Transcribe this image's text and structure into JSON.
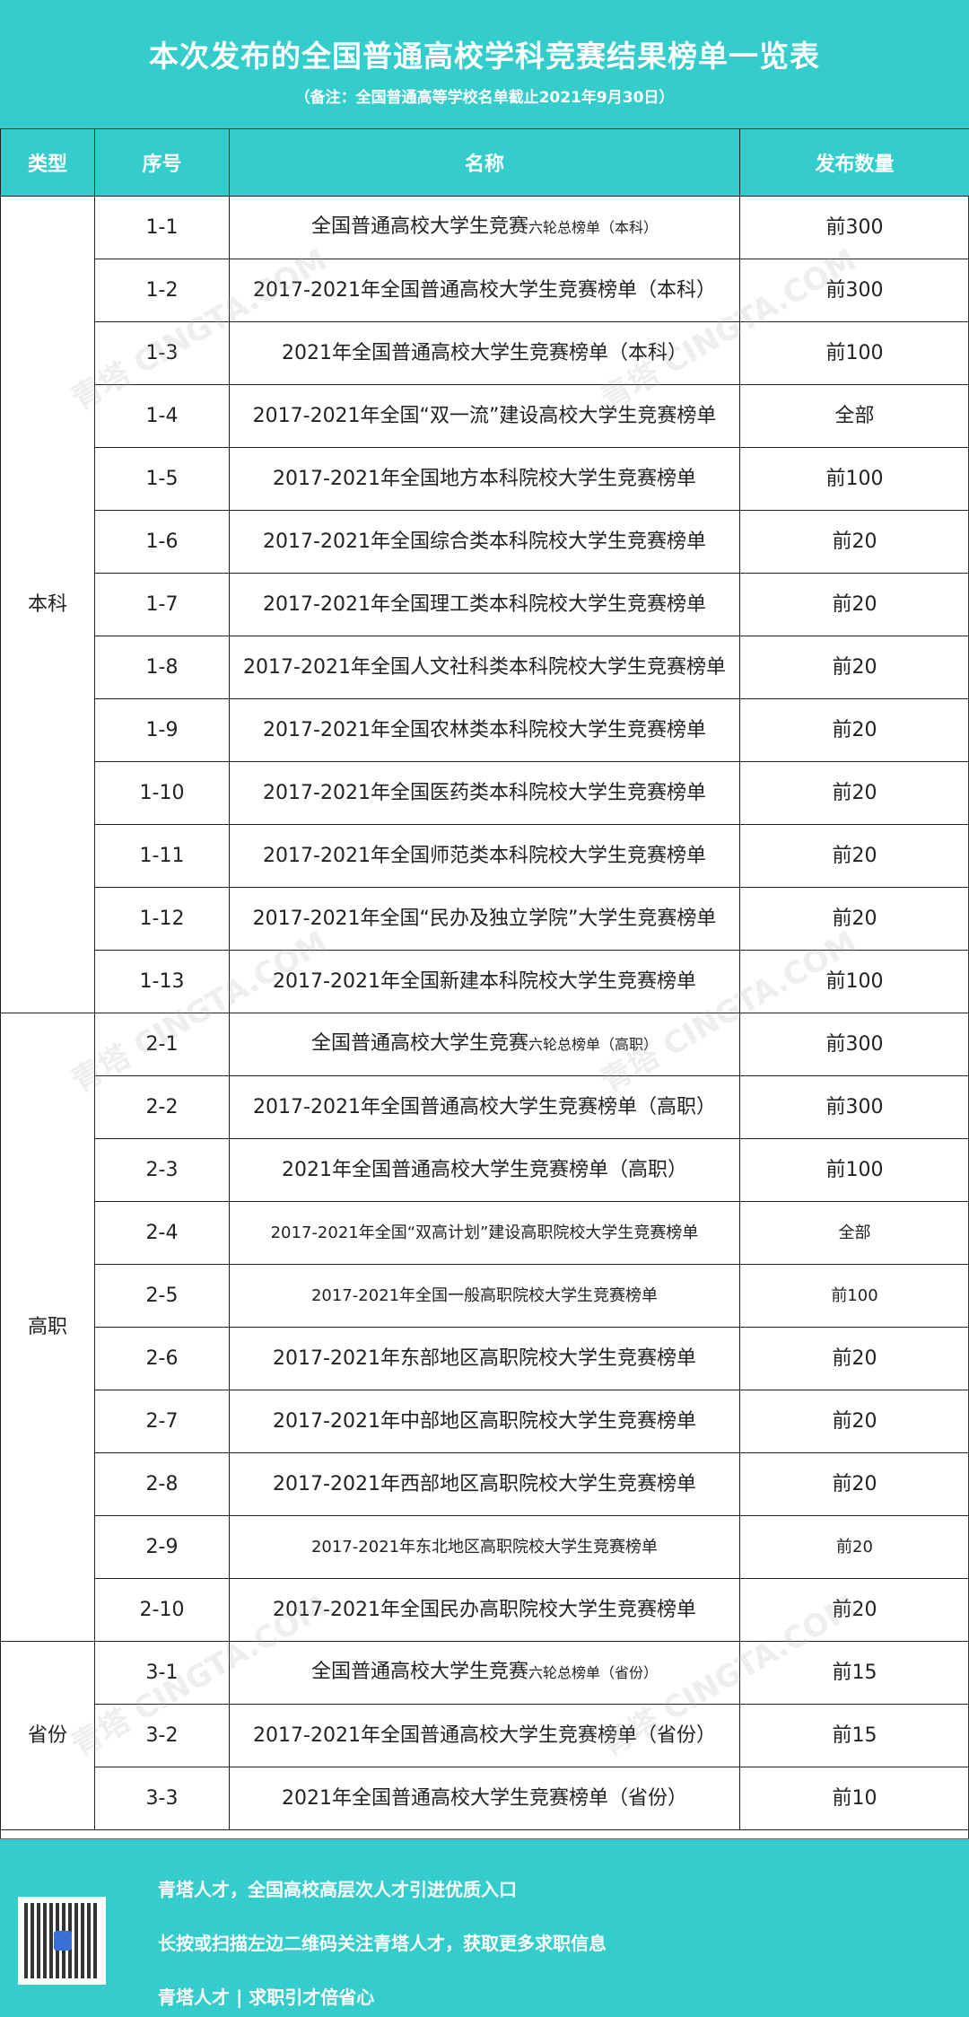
{
  "title": "本次发布的全国普通高校学科竞赛结果榜单一览表",
  "subtitle": "（备注：全国普通高等学校名单截止2021年9月30日）",
  "headers": [
    "类型",
    "序号",
    "名称",
    "发布数量"
  ],
  "colors": {
    "accent": "#35cccc"
  },
  "groups": [
    {
      "type": "本科",
      "rows": [
        {
          "id": "1-1",
          "name": "全国普通高校大学生竞赛",
          "name_small": "六轮总榜单（本科）",
          "count": "前300"
        },
        {
          "id": "1-2",
          "name": "2017-2021年全国普通高校大学生竞赛榜单（本科）",
          "count": "前300"
        },
        {
          "id": "1-3",
          "name": "2021年全国普通高校大学生竞赛榜单（本科）",
          "count": "前100"
        },
        {
          "id": "1-4",
          "name": "2017-2021年全国“双一流”建设高校大学生竞赛榜单",
          "count": "全部"
        },
        {
          "id": "1-5",
          "name": "2017-2021年全国地方本科院校大学生竞赛榜单",
          "count": "前100"
        },
        {
          "id": "1-6",
          "name": "2017-2021年全国综合类本科院校大学生竞赛榜单",
          "count": "前20"
        },
        {
          "id": "1-7",
          "name": "2017-2021年全国理工类本科院校大学生竞赛榜单",
          "count": "前20"
        },
        {
          "id": "1-8",
          "name": "2017-2021年全国人文社科类本科院校大学生竞赛榜单",
          "count": "前20"
        },
        {
          "id": "1-9",
          "name": "2017-2021年全国农林类本科院校大学生竞赛榜单",
          "count": "前20"
        },
        {
          "id": "1-10",
          "name": "2017-2021年全国医药类本科院校大学生竞赛榜单",
          "count": "前20"
        },
        {
          "id": "1-11",
          "name": "2017-2021年全国师范类本科院校大学生竞赛榜单",
          "count": "前20"
        },
        {
          "id": "1-12",
          "name": "2017-2021年全国“民办及独立学院”大学生竞赛榜单",
          "count": "前20"
        },
        {
          "id": "1-13",
          "name": "2017-2021年全国新建本科院校大学生竞赛榜单",
          "count": "前100"
        }
      ]
    },
    {
      "type": "高职",
      "rows": [
        {
          "id": "2-1",
          "name": "全国普通高校大学生竞赛",
          "name_small": "六轮总榜单（高职）",
          "count": "前300"
        },
        {
          "id": "2-2",
          "name": "2017-2021年全国普通高校大学生竞赛榜单（高职）",
          "count": "前300"
        },
        {
          "id": "2-3",
          "name": "2021年全国普通高校大学生竞赛榜单（高职）",
          "count": "前100"
        },
        {
          "id": "2-4",
          "name": "2017-2021年全国“双高计划”建设高职院校大学生竞赛榜单",
          "count": "全部",
          "small": true
        },
        {
          "id": "2-5",
          "name": "2017-2021年全国一般高职院校大学生竞赛榜单",
          "count": "前100",
          "small": true
        },
        {
          "id": "2-6",
          "name": "2017-2021年东部地区高职院校大学生竞赛榜单",
          "count": "前20"
        },
        {
          "id": "2-7",
          "name": "2017-2021年中部地区高职院校大学生竞赛榜单",
          "count": "前20"
        },
        {
          "id": "2-8",
          "name": "2017-2021年西部地区高职院校大学生竞赛榜单",
          "count": "前20"
        },
        {
          "id": "2-9",
          "name": "2017-2021年东北地区高职院校大学生竞赛榜单",
          "count": "前20",
          "small": true
        },
        {
          "id": "2-10",
          "name": "2017-2021年全国民办高职院校大学生竞赛榜单",
          "count": "前20"
        }
      ]
    },
    {
      "type": "省份",
      "rows": [
        {
          "id": "3-1",
          "name": "全国普通高校大学生竞赛",
          "name_small": "六轮总榜单（省份）",
          "count": "前15"
        },
        {
          "id": "3-2",
          "name": "2017-2021年全国普通高校大学生竞赛榜单（省份）",
          "count": "前15"
        },
        {
          "id": "3-3",
          "name": "2021年全国普通高校大学生竞赛榜单（省份）",
          "count": "前10"
        }
      ]
    }
  ],
  "footer": {
    "line1": "青塔人才，全国高校高层次人才引进优质入口",
    "line2": "长按或扫描左边二维码关注青塔人才，获取更多求职信息",
    "line3": "青塔人才 | 求职引才倍省心"
  },
  "watermark": "青塔 CINGTA.COM"
}
